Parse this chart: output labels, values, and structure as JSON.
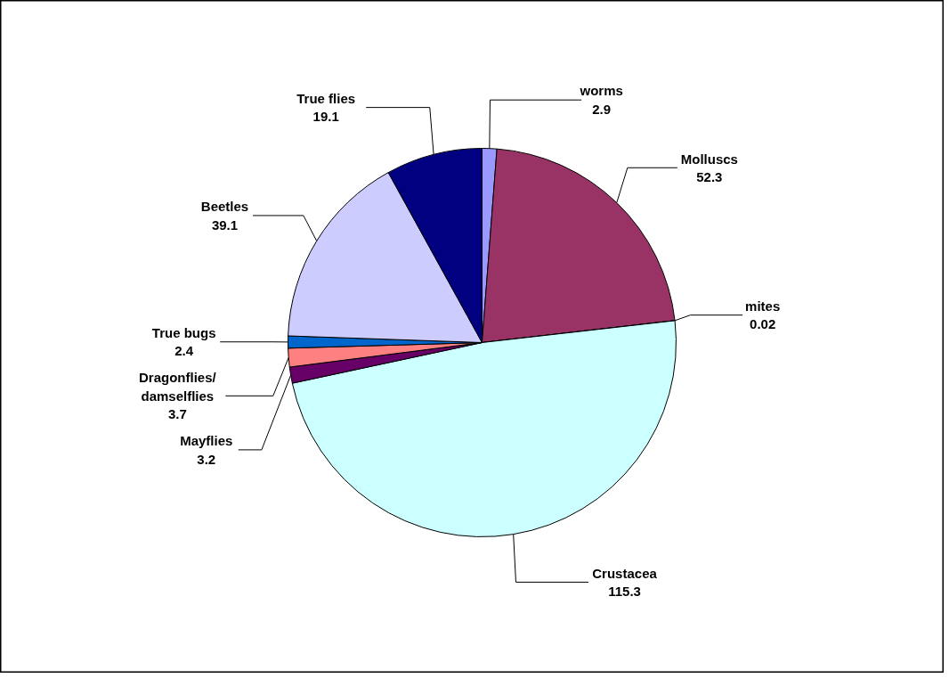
{
  "chart_data": {
    "type": "pie",
    "categories": [
      "worms",
      "Molluscs",
      "mites",
      "Crustacea",
      "Mayflies",
      "Dragonflies/damselflies",
      "True bugs",
      "Beetles",
      "True flies"
    ],
    "values": [
      2.9,
      52.3,
      0.02,
      115.3,
      3.2,
      3.7,
      2.4,
      39.1,
      19.1
    ],
    "colors": [
      "#9999ff",
      "#993366",
      "#ffffcc",
      "#ccffff",
      "#660066",
      "#ff8080",
      "#0066cc",
      "#ccccff",
      "#000080"
    ],
    "data_labels": true
  }
}
